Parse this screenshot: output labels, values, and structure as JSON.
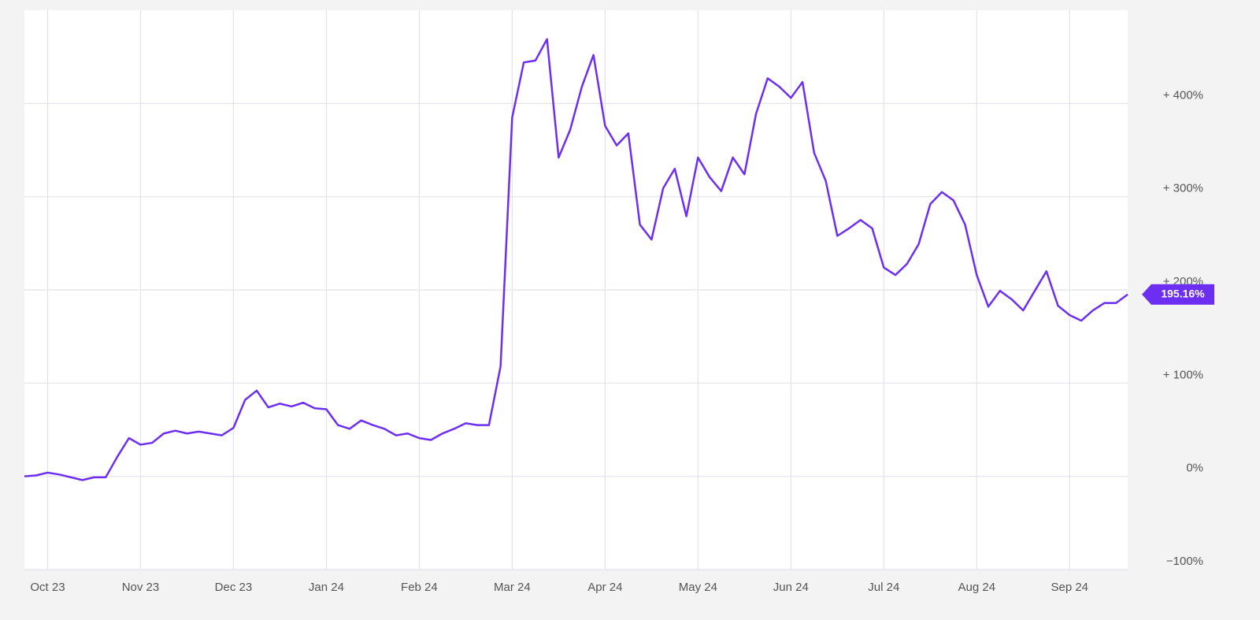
{
  "chart_data": {
    "type": "line",
    "categories": [
      null,
      null,
      "Oct 23",
      null,
      null,
      null,
      null,
      null,
      null,
      null,
      "Nov 23",
      null,
      null,
      null,
      null,
      null,
      null,
      null,
      "Dec 23",
      null,
      null,
      null,
      null,
      null,
      null,
      null,
      "Jan 24",
      null,
      null,
      null,
      null,
      null,
      null,
      null,
      "Feb 24",
      null,
      null,
      null,
      null,
      null,
      null,
      null,
      "Mar 24",
      null,
      null,
      null,
      null,
      null,
      null,
      null,
      "Apr 24",
      null,
      null,
      null,
      null,
      null,
      null,
      null,
      "May 24",
      null,
      null,
      null,
      null,
      null,
      null,
      null,
      "Jun 24",
      null,
      null,
      null,
      null,
      null,
      null,
      null,
      "Jul 24",
      null,
      null,
      null,
      null,
      null,
      null,
      null,
      "Aug 24",
      null,
      null,
      null,
      null,
      null,
      null,
      null,
      "Sep 24",
      null,
      null,
      null,
      null,
      null
    ],
    "values": [
      0,
      1,
      4,
      2,
      -1,
      -4,
      -1,
      -1,
      21,
      41,
      34,
      36,
      46,
      49,
      46,
      48,
      46,
      44,
      52,
      82,
      92,
      74,
      78,
      75,
      79,
      73,
      72,
      55,
      51,
      60,
      55,
      51,
      44,
      46,
      41,
      39,
      46,
      51,
      57,
      55,
      55,
      118,
      385,
      444,
      446,
      469,
      342,
      372,
      418,
      452,
      376,
      355,
      368,
      270,
      254,
      309,
      330,
      279,
      342,
      321,
      306,
      342,
      324,
      389,
      427,
      418,
      406,
      423,
      347,
      317,
      258,
      266,
      275,
      266,
      224,
      216,
      228,
      249,
      292,
      305,
      296,
      270,
      216,
      182,
      199,
      190,
      178,
      199,
      220,
      183,
      173,
      167,
      178,
      186,
      186,
      195.16
    ],
    "color": "#6c2ff2",
    "ylim": [
      -100,
      500
    ],
    "yticks": [
      {
        "value": -100,
        "label": "−100%"
      },
      {
        "value": 0,
        "label": "0%"
      },
      {
        "value": 100,
        "label": "+ 100%"
      },
      {
        "value": 200,
        "label": "+ 200%"
      },
      {
        "value": 300,
        "label": "+ 300%"
      },
      {
        "value": 400,
        "label": "+ 400%"
      }
    ],
    "grid": true,
    "current_value": {
      "value": 195.16,
      "label": "195.16%"
    }
  }
}
